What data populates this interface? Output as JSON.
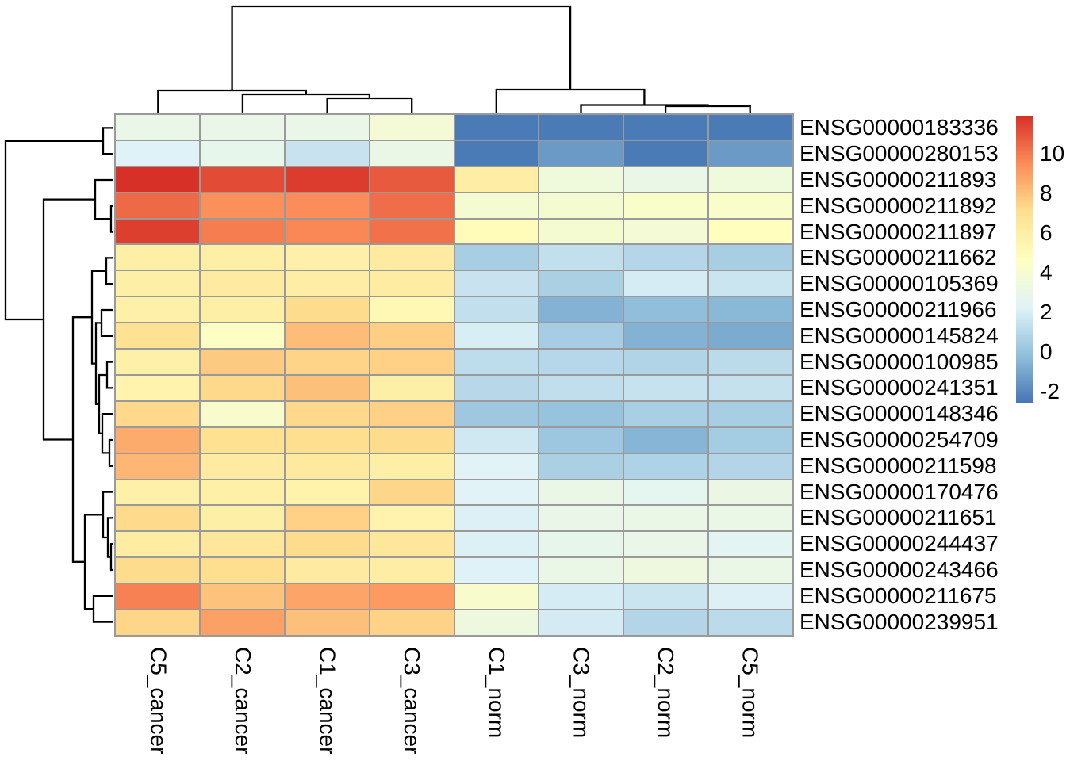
{
  "figure": {
    "background": "#ffffff",
    "grid_line_color": "#9a9a9a",
    "dendrogram_color": "#000000",
    "text_color": "#000000"
  },
  "chart_data": {
    "type": "heatmap",
    "title": "",
    "columns": [
      "C5_cancer",
      "C2_cancer",
      "C1_cancer",
      "C3_cancer",
      "C1_norm",
      "C3_norm",
      "C2_norm",
      "C5_norm"
    ],
    "rows": [
      "ENSG00000183336",
      "ENSG00000280153",
      "ENSG00000211893",
      "ENSG00000211892",
      "ENSG00000211897",
      "ENSG00000211662",
      "ENSG00000105369",
      "ENSG00000211966",
      "ENSG00000145824",
      "ENSG00000100985",
      "ENSG00000241351",
      "ENSG00000148346",
      "ENSG00000254709",
      "ENSG00000211598",
      "ENSG00000170476",
      "ENSG00000211651",
      "ENSG00000244437",
      "ENSG00000243466",
      "ENSG00000211675",
      "ENSG00000239951"
    ],
    "values": [
      [
        2.9,
        2.9,
        2.9,
        3.7,
        -2.4,
        -2.4,
        -2.4,
        -2.4
      ],
      [
        2.2,
        2.8,
        1.5,
        3.0,
        -2.4,
        -1.4,
        -2.4,
        -1.4
      ],
      [
        11.9,
        11.2,
        11.6,
        10.8,
        6.0,
        3.4,
        3.0,
        3.4
      ],
      [
        10.4,
        9.4,
        9.5,
        10.3,
        3.9,
        3.9,
        4.2,
        4.2
      ],
      [
        11.5,
        9.9,
        9.6,
        10.2,
        5.0,
        3.9,
        3.7,
        4.7
      ],
      [
        5.9,
        5.9,
        5.8,
        6.2,
        0.5,
        1.3,
        0.9,
        0.5
      ],
      [
        5.9,
        6.2,
        6.0,
        6.1,
        1.5,
        0.6,
        1.9,
        1.6
      ],
      [
        5.8,
        5.9,
        7.2,
        5.2,
        1.3,
        -0.6,
        -0.2,
        -0.4
      ],
      [
        6.9,
        4.5,
        8.1,
        7.6,
        2.0,
        0.45,
        -0.6,
        -0.85
      ],
      [
        5.8,
        7.7,
        7.4,
        7.5,
        1.2,
        0.95,
        0.8,
        1.1
      ],
      [
        5.6,
        7.3,
        8.0,
        5.9,
        1.0,
        1.25,
        1.45,
        1.4
      ],
      [
        7.3,
        4.1,
        7.3,
        7.5,
        0.25,
        0.0,
        0.55,
        0.5
      ],
      [
        8.6,
        7.0,
        7.1,
        7.2,
        1.7,
        0.2,
        -0.5,
        0.4
      ],
      [
        8.3,
        6.2,
        6.3,
        5.9,
        2.3,
        0.6,
        0.7,
        0.85
      ],
      [
        5.8,
        5.85,
        5.7,
        7.35,
        2.3,
        3.0,
        2.6,
        3.1
      ],
      [
        7.25,
        5.9,
        7.5,
        5.6,
        2.1,
        2.9,
        3.0,
        3.0
      ],
      [
        6.1,
        6.5,
        7.2,
        6.5,
        2.1,
        2.8,
        2.9,
        2.5
      ],
      [
        7.2,
        7.1,
        6.2,
        6.0,
        2.2,
        3.0,
        3.3,
        3.0
      ],
      [
        9.8,
        7.9,
        8.8,
        9.1,
        4.1,
        1.9,
        1.6,
        2.1
      ],
      [
        7.35,
        8.9,
        8.0,
        7.45,
        3.3,
        1.85,
        0.85,
        1.1
      ]
    ],
    "value_domain": [
      -2.6,
      11.9
    ],
    "palette": [
      {
        "value": -2.6,
        "color": "#4575b4"
      },
      {
        "value": -0.18,
        "color": "#91bfdb"
      },
      {
        "value": 2.23,
        "color": "#e0f3f8"
      },
      {
        "value": 4.65,
        "color": "#ffffbf"
      },
      {
        "value": 7.07,
        "color": "#fee090"
      },
      {
        "value": 9.48,
        "color": "#fc8d59"
      },
      {
        "value": 11.9,
        "color": "#d73027"
      }
    ],
    "legend_ticks": [
      "10",
      "8",
      "6",
      "4",
      "2",
      "0",
      "-2"
    ],
    "legend_tick_values": [
      10,
      8,
      6,
      4,
      2,
      0,
      -2
    ],
    "legend_position": "right",
    "grid": true,
    "col_dendrogram": [
      [
        [
          412.6,
          143
        ],
        [
          412.6,
          124
        ],
        [
          519.2,
          124
        ],
        [
          519.2,
          143
        ]
      ],
      [
        [
          305.9,
          143
        ],
        [
          305.9,
          119
        ],
        [
          465.9,
          119
        ],
        [
          465.9,
          124
        ]
      ],
      [
        [
          199.3,
          143
        ],
        [
          199.3,
          114
        ],
        [
          385.9,
          114
        ],
        [
          385.9,
          119
        ]
      ],
      [
        [
          839.1,
          143
        ],
        [
          839.1,
          134
        ],
        [
          945.7,
          134
        ],
        [
          945.7,
          143
        ]
      ],
      [
        [
          732.5,
          143
        ],
        [
          732.5,
          132.5
        ],
        [
          892.4,
          132.5
        ],
        [
          892.4,
          134
        ]
      ],
      [
        [
          625.8,
          143
        ],
        [
          625.8,
          113
        ],
        [
          812.4,
          113
        ],
        [
          812.4,
          132.5
        ]
      ],
      [
        [
          292.6,
          114
        ],
        [
          292.6,
          8
        ],
        [
          719.1,
          8
        ],
        [
          719.1,
          113
        ]
      ]
    ],
    "row_dendrogram": [
      [
        [
          143,
          161.4
        ],
        [
          130,
          161.4
        ],
        [
          130,
          194.2
        ],
        [
          143,
          194.2
        ]
      ],
      [
        [
          143,
          259.8
        ],
        [
          140,
          259.8
        ],
        [
          140,
          292.6
        ],
        [
          143,
          292.6
        ]
      ],
      [
        [
          143,
          227
        ],
        [
          120,
          227
        ],
        [
          120,
          276.2
        ],
        [
          140,
          276.2
        ]
      ],
      [
        [
          143,
          325.4
        ],
        [
          134,
          325.4
        ],
        [
          134,
          358.2
        ],
        [
          143,
          358.2
        ]
      ],
      [
        [
          143,
          391
        ],
        [
          128,
          391
        ],
        [
          128,
          423.8
        ],
        [
          143,
          423.8
        ]
      ],
      [
        [
          143,
          456.6
        ],
        [
          135,
          456.6
        ],
        [
          135,
          489.4
        ],
        [
          143,
          489.4
        ]
      ],
      [
        [
          143,
          555
        ],
        [
          138,
          555
        ],
        [
          138,
          587.8
        ],
        [
          143,
          587.8
        ]
      ],
      [
        [
          143,
          522.2
        ],
        [
          129,
          522.2
        ],
        [
          129,
          571.4
        ],
        [
          138,
          571.4
        ]
      ],
      [
        [
          135,
          473
        ],
        [
          125,
          473
        ],
        [
          125,
          546.8
        ],
        [
          129,
          546.8
        ]
      ],
      [
        [
          128,
          407.4
        ],
        [
          121,
          407.4
        ],
        [
          121,
          509.9
        ],
        [
          125,
          509.9
        ]
      ],
      [
        [
          134,
          341.8
        ],
        [
          116,
          341.8
        ],
        [
          116,
          458.6
        ],
        [
          121,
          458.6
        ]
      ],
      [
        [
          143,
          686.2
        ],
        [
          140,
          686.2
        ],
        [
          140,
          719
        ],
        [
          143,
          719
        ]
      ],
      [
        [
          143,
          653.4
        ],
        [
          136,
          653.4
        ],
        [
          136,
          702.6
        ],
        [
          140,
          702.6
        ]
      ],
      [
        [
          143,
          620.6
        ],
        [
          130,
          620.6
        ],
        [
          130,
          678
        ],
        [
          136,
          678
        ]
      ],
      [
        [
          143,
          751.8
        ],
        [
          118,
          751.8
        ],
        [
          118,
          784.6
        ],
        [
          143,
          784.6
        ]
      ],
      [
        [
          130,
          649.3
        ],
        [
          107,
          649.3
        ],
        [
          107,
          768.2
        ],
        [
          118,
          768.2
        ]
      ],
      [
        [
          116,
          400.2
        ],
        [
          92,
          400.2
        ],
        [
          92,
          708.8
        ],
        [
          107,
          708.8
        ]
      ],
      [
        [
          120,
          251.6
        ],
        [
          55,
          251.6
        ],
        [
          55,
          554.5
        ],
        [
          92,
          554.5
        ]
      ],
      [
        [
          130,
          177.8
        ],
        [
          7,
          177.8
        ],
        [
          7,
          403
        ],
        [
          55,
          403
        ]
      ]
    ]
  }
}
